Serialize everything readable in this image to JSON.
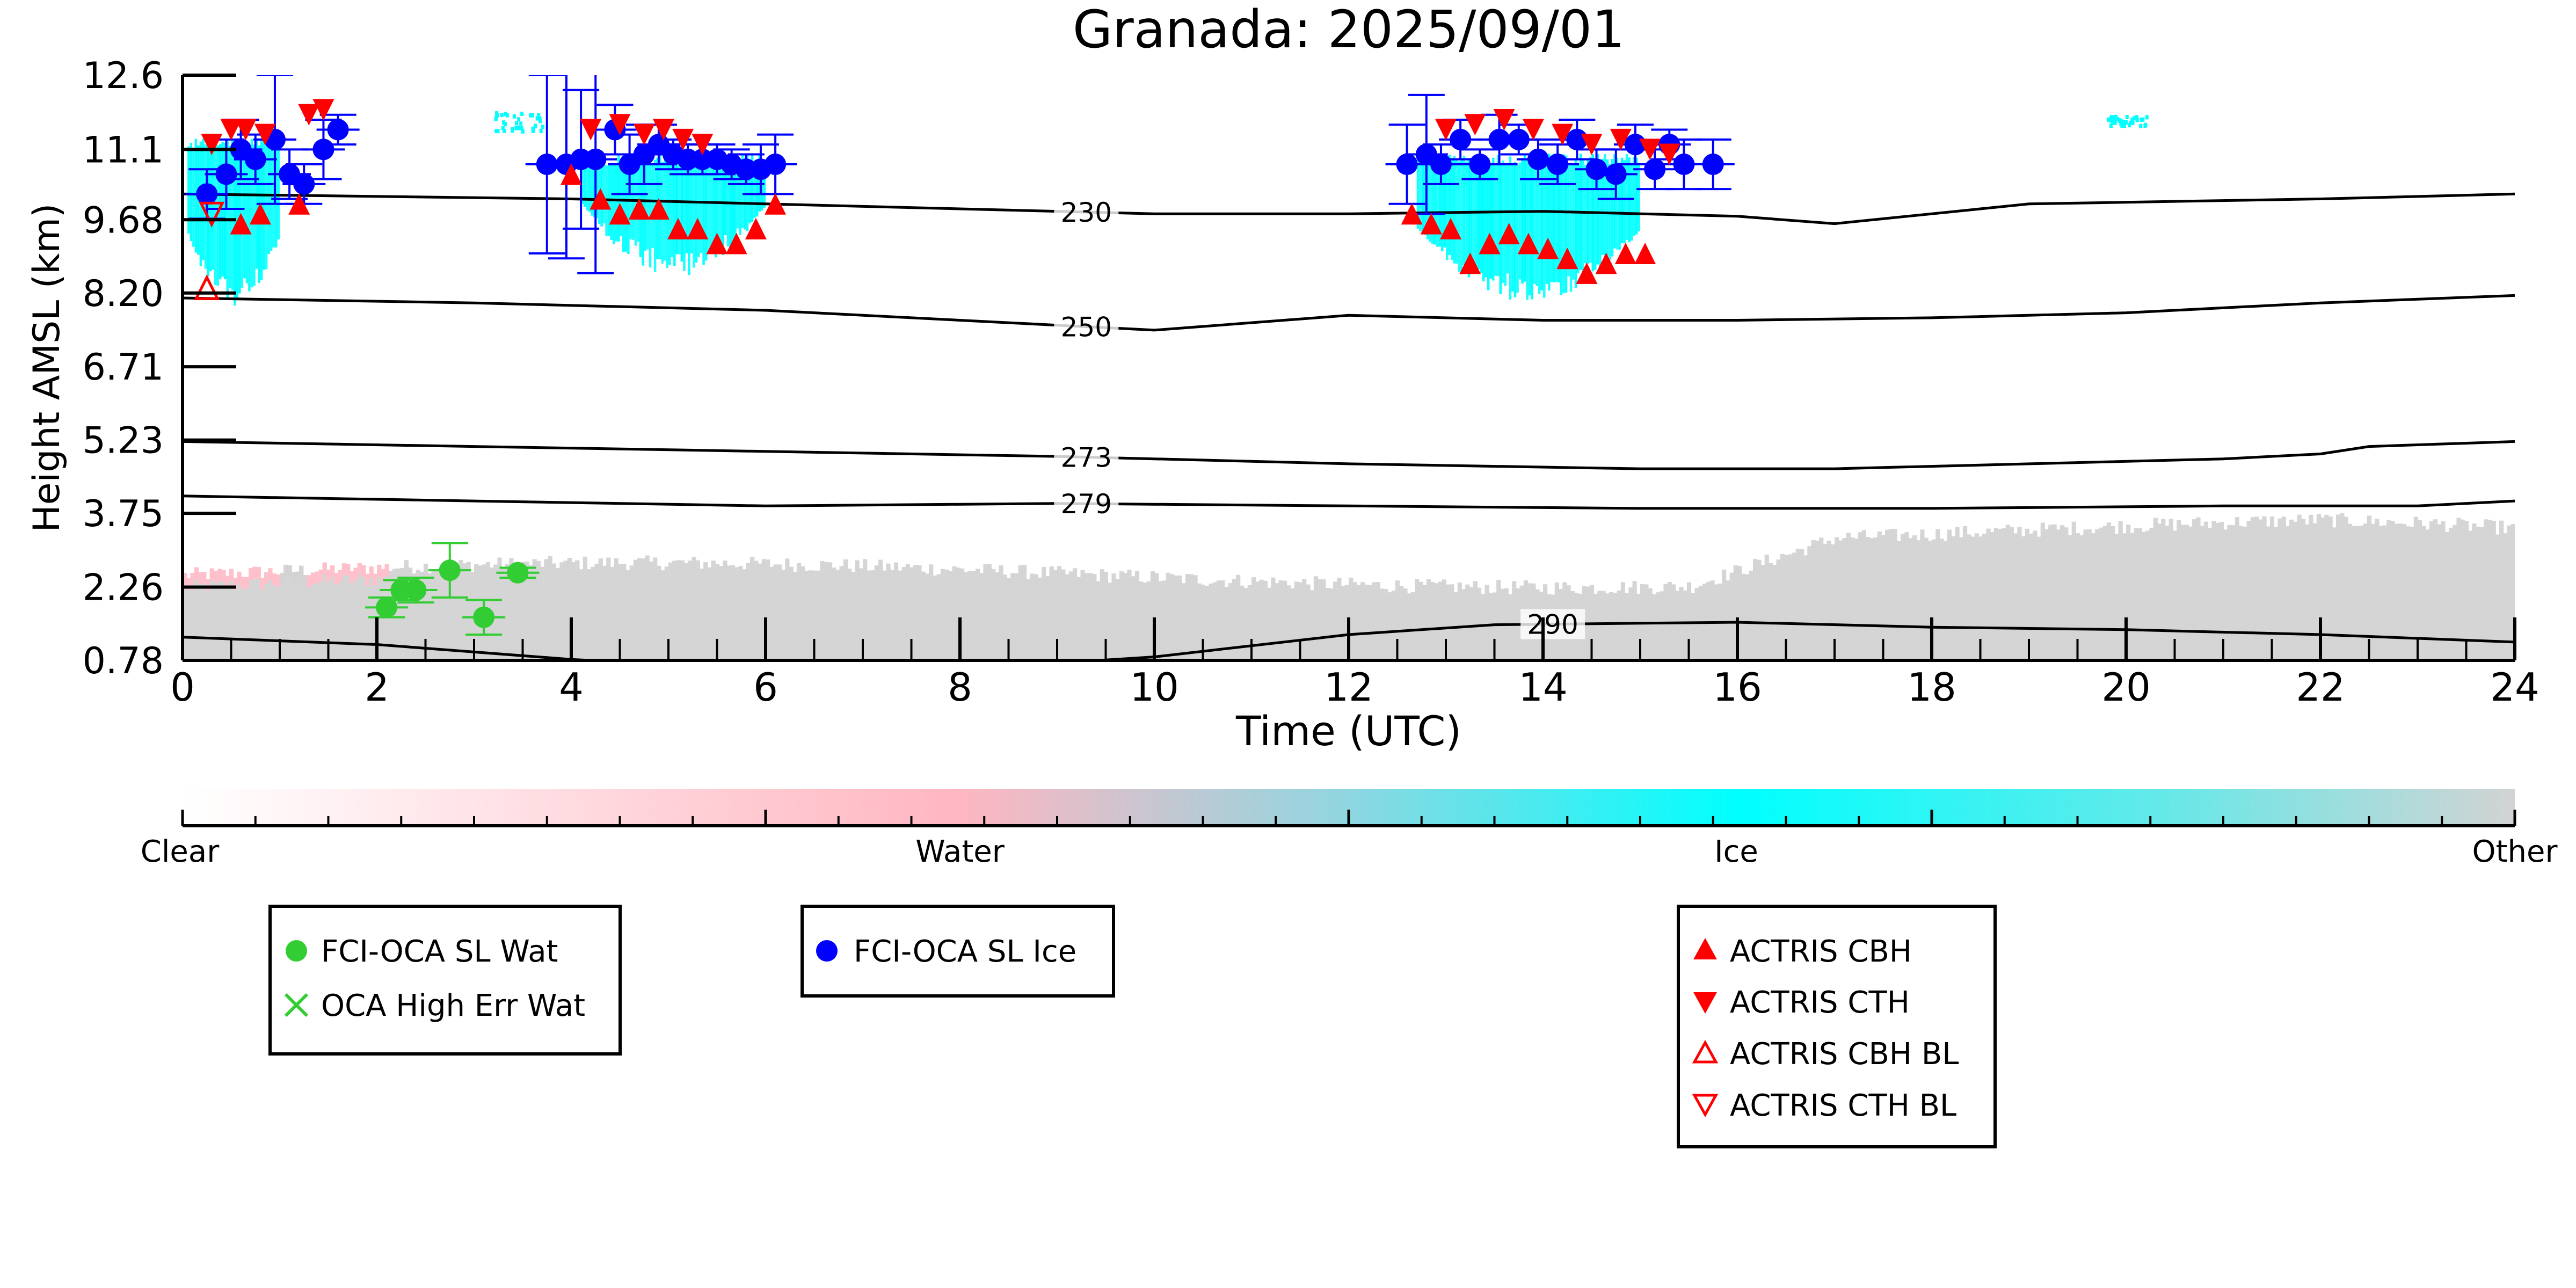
{
  "chart_data": {
    "type": "scatter",
    "title": "Granada: 2025/09/01",
    "xlabel": "Time (UTC)",
    "ylabel": "Height AMSL (km)",
    "xlim": [
      0,
      24
    ],
    "ylim": [
      0.78,
      12.6
    ],
    "x_ticks": [
      "0",
      "2",
      "4",
      "6",
      "8",
      "10",
      "12",
      "14",
      "16",
      "18",
      "20",
      "22",
      "24"
    ],
    "y_ticks": [
      "0.78",
      "2.26",
      "3.75",
      "5.23",
      "6.71",
      "8.20",
      "9.68",
      "11.1",
      "12.6"
    ],
    "grid": false,
    "colorbar": {
      "labels": [
        "Clear",
        "Water",
        "Ice",
        "Other"
      ],
      "colors": [
        "#ffffff",
        "#ffb6c1",
        "#00ffff",
        "#d3d3d3"
      ]
    },
    "temperature_contours": [
      {
        "label": "230",
        "label_x": 9.3,
        "x": [
          0,
          4,
          8,
          10,
          12,
          14,
          16,
          17,
          19,
          22,
          24
        ],
        "y": [
          10.2,
          10.1,
          9.9,
          9.8,
          9.8,
          9.85,
          9.75,
          9.6,
          10.0,
          10.1,
          10.2
        ]
      },
      {
        "label": "250",
        "label_x": 9.3,
        "x": [
          0,
          3,
          6,
          9,
          10,
          12,
          14,
          16,
          18,
          20,
          22,
          24
        ],
        "y": [
          8.1,
          8.0,
          7.85,
          7.55,
          7.45,
          7.75,
          7.65,
          7.65,
          7.7,
          7.8,
          8.0,
          8.15
        ]
      },
      {
        "label": "273",
        "label_x": 9.3,
        "x": [
          0,
          3,
          6,
          9,
          12,
          15,
          17,
          19,
          21,
          22,
          22.5,
          24
        ],
        "y": [
          5.2,
          5.1,
          5.0,
          4.9,
          4.75,
          4.65,
          4.65,
          4.75,
          4.85,
          4.95,
          5.1,
          5.2
        ]
      },
      {
        "label": "279",
        "label_x": 9.3,
        "x": [
          0,
          3,
          6,
          9,
          12,
          15,
          18,
          21,
          23,
          24
        ],
        "y": [
          4.1,
          4.0,
          3.9,
          3.95,
          3.9,
          3.85,
          3.85,
          3.9,
          3.9,
          4.0
        ]
      },
      {
        "label": "290",
        "label_x": 14.1,
        "x": [
          0,
          2,
          4,
          6,
          8,
          10,
          12,
          13.5,
          16,
          18,
          20,
          22,
          24
        ],
        "y": [
          1.25,
          1.1,
          0.8,
          0.6,
          0.6,
          0.85,
          1.3,
          1.5,
          1.55,
          1.45,
          1.4,
          1.3,
          1.15
        ]
      }
    ],
    "series": [
      {
        "name": "FCI-OCA SL Wat",
        "marker": "circle",
        "color": "#32cd32",
        "x": [
          2.1,
          2.25,
          2.4,
          2.75,
          3.1,
          3.45
        ],
        "y": [
          1.85,
          2.2,
          2.2,
          2.6,
          1.65,
          2.55
        ],
        "err": [
          0.2,
          0.2,
          0.25,
          0.55,
          0.35,
          0.1
        ]
      },
      {
        "name": "OCA High Err Wat",
        "marker": "x",
        "color": "#32cd32",
        "x": [],
        "y": []
      },
      {
        "name": "FCI-OCA SL Ice",
        "marker": "circle",
        "color": "#0000ff",
        "x": [
          0.25,
          0.45,
          0.6,
          0.75,
          0.95,
          1.1,
          1.25,
          1.45,
          1.6,
          3.75,
          3.95,
          4.1,
          4.25,
          4.45,
          4.6,
          4.75,
          4.9,
          5.05,
          5.2,
          5.35,
          5.5,
          5.65,
          5.8,
          5.95,
          6.1,
          12.6,
          12.8,
          12.95,
          13.15,
          13.35,
          13.55,
          13.75,
          13.95,
          14.15,
          14.35,
          14.55,
          14.75,
          14.95,
          15.15,
          15.3,
          15.45,
          15.75
        ],
        "y": [
          10.2,
          10.6,
          11.1,
          10.9,
          11.3,
          10.6,
          10.4,
          11.1,
          11.5,
          10.8,
          10.8,
          10.9,
          10.9,
          11.5,
          10.8,
          11.0,
          11.2,
          11.0,
          10.9,
          10.9,
          10.9,
          10.8,
          10.7,
          10.7,
          10.8,
          10.8,
          11.0,
          10.8,
          11.3,
          10.8,
          11.3,
          11.3,
          10.9,
          10.8,
          11.3,
          10.7,
          10.6,
          11.2,
          10.7,
          11.2,
          10.8,
          10.8
        ],
        "err": [
          0.5,
          0.7,
          0.6,
          0.5,
          1.3,
          0.5,
          0.4,
          0.6,
          0.3,
          1.8,
          1.9,
          1.4,
          2.3,
          0.5,
          0.6,
          0.6,
          0.4,
          0.3,
          0.3,
          0.3,
          0.3,
          0.3,
          0.3,
          0.5,
          0.6,
          0.8,
          1.2,
          0.4,
          0.4,
          0.3,
          0.5,
          0.3,
          0.4,
          0.4,
          0.4,
          0.4,
          0.5,
          0.4,
          0.4,
          0.3,
          0.5,
          0.5
        ]
      },
      {
        "name": "ACTRIS CBH",
        "marker": "triangle-up",
        "color": "#ff0000",
        "x": [
          0.6,
          0.8,
          1.2,
          4.0,
          4.3,
          4.5,
          4.7,
          4.9,
          5.1,
          5.3,
          5.5,
          5.7,
          5.9,
          6.1,
          12.65,
          12.85,
          13.05,
          13.25,
          13.45,
          13.65,
          13.85,
          14.05,
          14.25,
          14.45,
          14.65,
          14.85,
          15.05
        ],
        "y": [
          9.6,
          9.8,
          10.0,
          10.6,
          10.1,
          9.8,
          9.9,
          9.9,
          9.5,
          9.5,
          9.2,
          9.2,
          9.5,
          10.0,
          9.8,
          9.6,
          9.5,
          8.8,
          9.2,
          9.4,
          9.2,
          9.1,
          8.9,
          8.6,
          8.8,
          9.0,
          9.0
        ]
      },
      {
        "name": "ACTRIS CTH",
        "marker": "triangle-down",
        "color": "#ff0000",
        "x": [
          0.3,
          0.5,
          0.65,
          0.85,
          1.3,
          1.45,
          4.2,
          4.5,
          4.75,
          4.95,
          5.15,
          5.35,
          13.0,
          13.3,
          13.6,
          13.9,
          14.2,
          14.5,
          14.8,
          15.1,
          15.3
        ],
        "y": [
          11.2,
          11.5,
          11.5,
          11.4,
          11.8,
          11.9,
          11.5,
          11.6,
          11.4,
          11.5,
          11.3,
          11.2,
          11.5,
          11.6,
          11.7,
          11.5,
          11.4,
          11.2,
          11.3,
          11.1,
          11.0
        ]
      },
      {
        "name": "ACTRIS CBH BL",
        "marker": "triangle-up-open",
        "color": "#ff0000",
        "x": [
          0.25
        ],
        "y": [
          8.3
        ]
      },
      {
        "name": "ACTRIS CTH BL",
        "marker": "triangle-down-open",
        "color": "#ff0000",
        "x": [
          0.3
        ],
        "y": [
          9.8
        ]
      }
    ],
    "legend_groups": [
      [
        "FCI-OCA SL Wat",
        "OCA High Err Wat"
      ],
      [
        "FCI-OCA SL Ice"
      ],
      [
        "ACTRIS CBH",
        "ACTRIS CTH",
        "ACTRIS CBH BL",
        "ACTRIS CTH BL"
      ]
    ]
  }
}
